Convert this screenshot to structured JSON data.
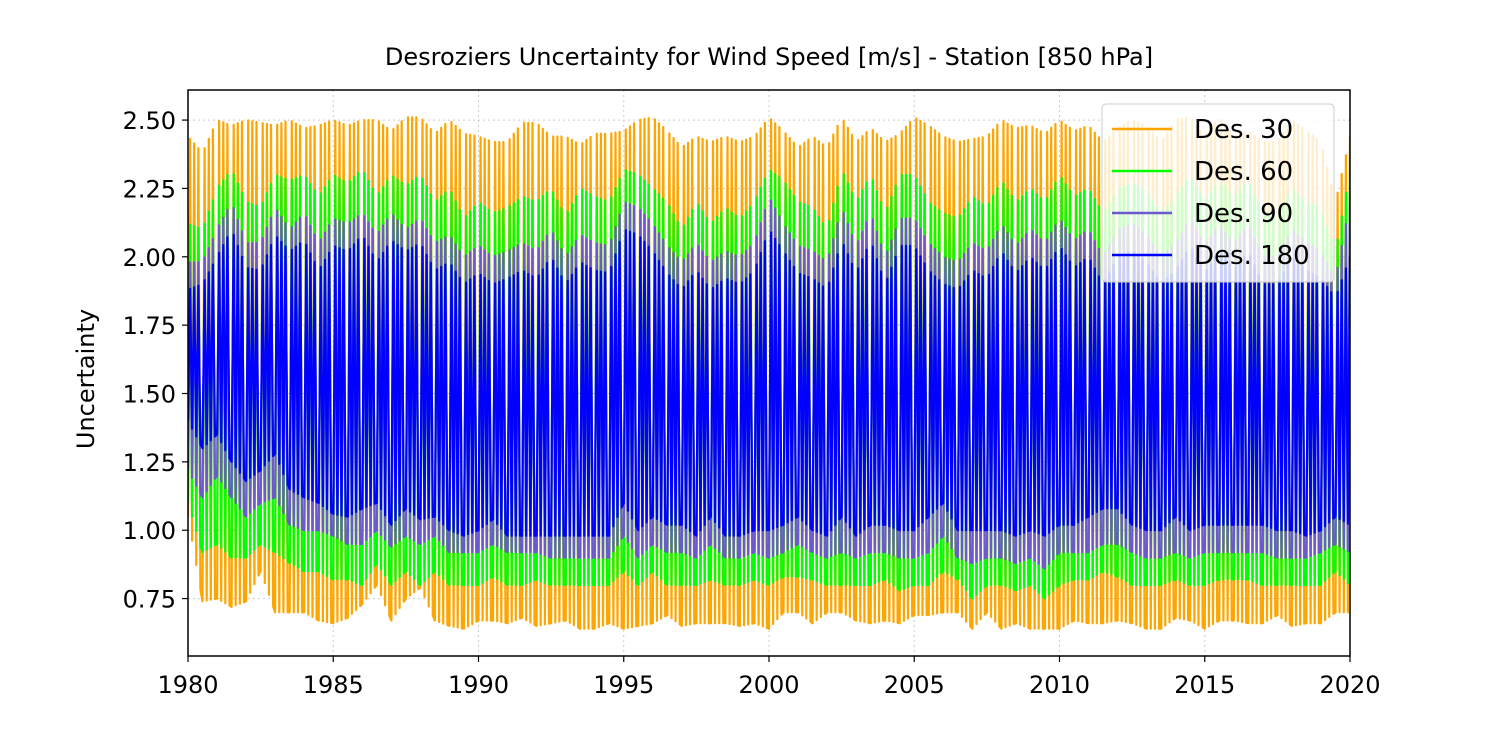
{
  "chart_data": {
    "type": "line",
    "title": "Desroziers Uncertainty for Wind Speed [m/s]  - Station  [850 hPa]",
    "xlabel": "",
    "ylabel": "Uncertainty",
    "xlim": [
      1980,
      2020
    ],
    "ylim": [
      0.54,
      2.61
    ],
    "x_ticks": [
      1980,
      1985,
      1990,
      1995,
      2000,
      2005,
      2010,
      2015,
      2020
    ],
    "y_ticks": [
      0.75,
      1.0,
      1.25,
      1.5,
      1.75,
      2.0,
      2.25,
      2.5
    ],
    "y_tick_labels": [
      "0.75",
      "1.00",
      "1.25",
      "1.50",
      "1.75",
      "2.00",
      "2.25",
      "2.50"
    ],
    "grid": true,
    "legend_position": "top-right",
    "x_sample_step_years": 0.5,
    "series": [
      {
        "name": "Des. 30",
        "color": "#FFA500",
        "min": [
          1.05,
          0.74,
          0.75,
          0.72,
          0.74,
          0.85,
          0.7,
          0.7,
          0.7,
          0.67,
          0.66,
          0.68,
          0.73,
          0.8,
          0.67,
          0.75,
          0.79,
          0.67,
          0.65,
          0.64,
          0.67,
          0.67,
          0.66,
          0.68,
          0.65,
          0.66,
          0.67,
          0.64,
          0.64,
          0.66,
          0.64,
          0.65,
          0.66,
          0.69,
          0.65,
          0.66,
          0.66,
          0.66,
          0.65,
          0.66,
          0.64,
          0.7,
          0.7,
          0.66,
          0.7,
          0.7,
          0.67,
          0.66,
          0.67,
          0.66,
          0.69,
          0.69,
          0.7,
          0.7,
          0.64,
          0.7,
          0.64,
          0.66,
          0.64,
          0.64,
          0.64,
          0.67,
          0.66,
          0.66,
          0.67,
          0.66,
          0.64,
          0.64,
          0.68,
          0.67,
          0.64,
          0.67,
          0.67,
          0.66,
          0.66,
          0.69,
          0.65,
          0.66,
          0.66,
          0.7,
          0.7
        ],
        "max": [
          2.44,
          2.38,
          2.5,
          2.48,
          2.5,
          2.49,
          2.48,
          2.5,
          2.47,
          2.48,
          2.5,
          2.48,
          2.5,
          2.5,
          2.46,
          2.51,
          2.51,
          2.45,
          2.5,
          2.45,
          2.44,
          2.42,
          2.42,
          2.49,
          2.49,
          2.44,
          2.44,
          2.41,
          2.45,
          2.45,
          2.46,
          2.5,
          2.51,
          2.46,
          2.4,
          2.44,
          2.42,
          2.44,
          2.42,
          2.44,
          2.51,
          2.46,
          2.4,
          2.44,
          2.4,
          2.51,
          2.42,
          2.47,
          2.42,
          2.45,
          2.51,
          2.48,
          2.44,
          2.42,
          2.43,
          2.44,
          2.5,
          2.47,
          2.48,
          2.45,
          2.5,
          2.46,
          2.48,
          2.42,
          2.47,
          2.5,
          2.48,
          2.42,
          2.5,
          2.51,
          2.44,
          2.51,
          2.44,
          2.46,
          2.42,
          2.42,
          2.5,
          2.46,
          2.42,
          2.2,
          2.44
        ]
      },
      {
        "name": "Des. 60",
        "color": "#00FF00",
        "min": [
          1.1,
          0.92,
          0.95,
          0.9,
          0.9,
          0.95,
          0.92,
          0.88,
          0.85,
          0.85,
          0.82,
          0.82,
          0.8,
          0.88,
          0.8,
          0.85,
          0.8,
          0.85,
          0.8,
          0.8,
          0.8,
          0.83,
          0.8,
          0.8,
          0.82,
          0.8,
          0.8,
          0.8,
          0.8,
          0.8,
          0.85,
          0.8,
          0.85,
          0.8,
          0.8,
          0.8,
          0.82,
          0.8,
          0.8,
          0.82,
          0.8,
          0.83,
          0.83,
          0.82,
          0.8,
          0.8,
          0.8,
          0.8,
          0.82,
          0.78,
          0.8,
          0.8,
          0.85,
          0.82,
          0.75,
          0.8,
          0.8,
          0.78,
          0.8,
          0.75,
          0.8,
          0.82,
          0.82,
          0.85,
          0.83,
          0.8,
          0.8,
          0.8,
          0.82,
          0.8,
          0.8,
          0.82,
          0.82,
          0.82,
          0.8,
          0.8,
          0.8,
          0.8,
          0.8,
          0.85,
          0.8
        ],
        "max": [
          2.12,
          2.1,
          2.25,
          2.32,
          2.2,
          2.18,
          2.3,
          2.28,
          2.3,
          2.22,
          2.3,
          2.27,
          2.32,
          2.22,
          2.3,
          2.26,
          2.3,
          2.2,
          2.25,
          2.14,
          2.2,
          2.16,
          2.18,
          2.22,
          2.2,
          2.25,
          2.15,
          2.25,
          2.22,
          2.2,
          2.32,
          2.3,
          2.25,
          2.2,
          2.1,
          2.2,
          2.12,
          2.18,
          2.14,
          2.2,
          2.32,
          2.28,
          2.2,
          2.18,
          2.1,
          2.32,
          2.2,
          2.3,
          2.16,
          2.3,
          2.3,
          2.2,
          2.16,
          2.14,
          2.22,
          2.18,
          2.28,
          2.2,
          2.25,
          2.2,
          2.3,
          2.22,
          2.25,
          2.16,
          2.25,
          2.27,
          2.24,
          2.16,
          2.22,
          2.3,
          2.2,
          2.28,
          2.22,
          2.28,
          2.16,
          2.16,
          2.25,
          2.2,
          2.18,
          2.02,
          2.32
        ]
      },
      {
        "name": "Des. 90",
        "color": "#6A5ACD",
        "min": [
          1.22,
          1.12,
          1.2,
          1.12,
          1.05,
          1.1,
          1.12,
          1.02,
          1.0,
          1.0,
          0.98,
          0.95,
          0.95,
          1.0,
          0.94,
          0.98,
          0.95,
          0.98,
          0.92,
          0.92,
          0.92,
          0.95,
          0.92,
          0.92,
          0.92,
          0.9,
          0.9,
          0.9,
          0.9,
          0.9,
          0.98,
          0.9,
          0.95,
          0.92,
          0.92,
          0.9,
          0.95,
          0.9,
          0.9,
          0.92,
          0.9,
          0.92,
          0.95,
          0.92,
          0.9,
          0.92,
          0.9,
          0.92,
          0.92,
          0.9,
          0.9,
          0.92,
          0.98,
          0.9,
          0.88,
          0.9,
          0.9,
          0.88,
          0.9,
          0.86,
          0.92,
          0.92,
          0.92,
          0.95,
          0.95,
          0.92,
          0.9,
          0.9,
          0.92,
          0.9,
          0.92,
          0.92,
          0.92,
          0.92,
          0.92,
          0.9,
          0.9,
          0.9,
          0.92,
          0.95,
          0.92
        ],
        "max": [
          1.98,
          1.98,
          2.1,
          2.2,
          2.05,
          2.05,
          2.18,
          2.1,
          2.16,
          2.05,
          2.14,
          2.12,
          2.16,
          2.08,
          2.16,
          2.1,
          2.14,
          2.05,
          2.08,
          2.0,
          2.04,
          2.0,
          2.02,
          2.05,
          2.02,
          2.1,
          2.0,
          2.08,
          2.05,
          2.04,
          2.2,
          2.18,
          2.12,
          2.04,
          1.98,
          2.05,
          1.98,
          2.02,
          2.0,
          2.05,
          2.22,
          2.12,
          2.04,
          2.02,
          1.98,
          2.18,
          2.04,
          2.16,
          2.0,
          2.14,
          2.14,
          2.05,
          2.0,
          1.98,
          2.05,
          2.02,
          2.12,
          2.04,
          2.1,
          2.05,
          2.14,
          2.06,
          2.1,
          2.0,
          2.1,
          2.12,
          2.08,
          2.0,
          2.05,
          2.14,
          2.04,
          2.12,
          2.05,
          2.12,
          2.0,
          2.0,
          2.1,
          2.05,
          2.02,
          1.92,
          2.2
        ]
      },
      {
        "name": "Des. 180",
        "color": "#0000FF",
        "min": [
          1.4,
          1.3,
          1.35,
          1.25,
          1.18,
          1.22,
          1.28,
          1.15,
          1.12,
          1.1,
          1.06,
          1.05,
          1.08,
          1.1,
          1.02,
          1.08,
          1.04,
          1.05,
          1.0,
          0.98,
          1.0,
          1.04,
          0.98,
          0.98,
          0.98,
          0.98,
          0.98,
          0.98,
          0.98,
          0.98,
          1.1,
          1.0,
          1.05,
          1.02,
          1.02,
          0.98,
          1.05,
          0.98,
          0.98,
          1.0,
          1.0,
          1.02,
          1.05,
          1.0,
          0.98,
          1.05,
          0.98,
          1.02,
          1.02,
          1.0,
          1.0,
          1.05,
          1.1,
          1.0,
          1.0,
          1.0,
          1.0,
          0.98,
          1.0,
          0.98,
          1.02,
          1.02,
          1.05,
          1.08,
          1.08,
          1.02,
          1.0,
          1.0,
          1.05,
          1.0,
          1.02,
          1.02,
          1.02,
          1.02,
          1.02,
          1.0,
          1.0,
          0.98,
          1.0,
          1.05,
          1.02
        ],
        "max": [
          1.88,
          1.9,
          2.0,
          2.1,
          1.96,
          1.95,
          2.08,
          2.02,
          2.06,
          1.95,
          2.04,
          2.02,
          2.08,
          1.98,
          2.06,
          2.02,
          2.05,
          1.95,
          1.98,
          1.9,
          1.94,
          1.9,
          1.92,
          1.95,
          1.92,
          2.0,
          1.9,
          1.98,
          1.95,
          1.94,
          2.1,
          2.08,
          2.02,
          1.94,
          1.88,
          1.95,
          1.88,
          1.92,
          1.9,
          1.95,
          2.1,
          2.02,
          1.94,
          1.92,
          1.88,
          2.06,
          1.94,
          2.06,
          1.9,
          2.04,
          2.04,
          1.95,
          1.9,
          1.88,
          1.95,
          1.92,
          2.02,
          1.94,
          2.0,
          1.95,
          2.04,
          1.96,
          2.0,
          1.9,
          2.0,
          2.02,
          1.98,
          1.9,
          1.95,
          2.04,
          1.94,
          2.02,
          1.95,
          2.02,
          1.9,
          1.9,
          2.0,
          1.95,
          1.92,
          1.85,
          2.0
        ]
      }
    ]
  }
}
